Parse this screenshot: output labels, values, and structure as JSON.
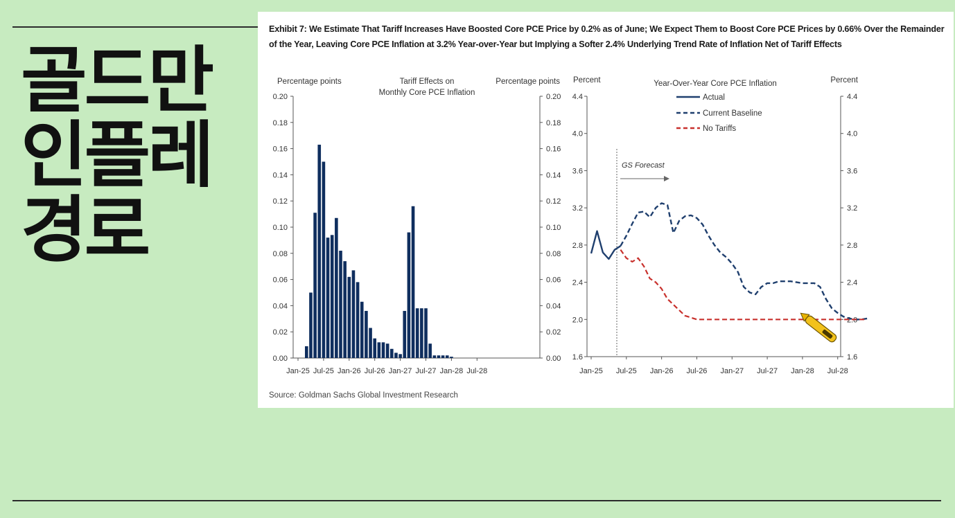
{
  "headline": [
    "골드만",
    "인플레",
    "경로"
  ],
  "exhibit": {
    "title": "Exhibit 7: We Estimate That Tariff Increases Have Boosted Core PCE Price by 0.2% as of June; We Expect Them to Boost Core PCE Prices by 0.66% Over the Remainder of the Year, Leaving Core PCE Inflation at 3.2% Year-over-Year but Implying a Softer 2.4% Underlying Trend Rate of Inflation Net of Tariff Effects",
    "source": "Source: Goldman Sachs Global Investment Research"
  },
  "colors": {
    "background": "#c7ebc0",
    "bars": "#0f2e5e",
    "actual": "#1f3f6e",
    "baseline": "#1f3f6e",
    "no_tariffs": "#c8312d",
    "pen": "#f2c21b"
  },
  "chart_data": [
    {
      "type": "bar",
      "title": "Tariff Effects on Monthly Core PCE Inflation",
      "ylabel_left": "Percentage points",
      "ylabel_right": "Percentage points",
      "ylim": [
        0,
        0.2
      ],
      "yticks": [
        "0.00",
        "0.02",
        "0.04",
        "0.06",
        "0.08",
        "0.10",
        "0.12",
        "0.14",
        "0.16",
        "0.18",
        "0.20"
      ],
      "xticks": [
        "Jan-25",
        "Jul-25",
        "Jan-26",
        "Jul-26",
        "Jan-27",
        "Jul-27",
        "Jan-28",
        "Jul-28"
      ],
      "grid": false,
      "categories": [
        "Mar-25",
        "Apr-25",
        "May-25",
        "Jun-25",
        "Jul-25",
        "Aug-25",
        "Sep-25",
        "Oct-25",
        "Nov-25",
        "Dec-25",
        "Jan-26",
        "Feb-26",
        "Mar-26",
        "Apr-26",
        "May-26",
        "Jun-26",
        "Jul-26",
        "Aug-26",
        "Sep-26",
        "Oct-26",
        "Nov-26",
        "Dec-26",
        "Jan-27",
        "Feb-27",
        "Mar-27",
        "Apr-27",
        "May-27",
        "Jun-27",
        "Jul-27",
        "Aug-27",
        "Sep-27",
        "Oct-27",
        "Nov-27",
        "Dec-27",
        "Jan-28"
      ],
      "values": [
        0.009,
        0.05,
        0.111,
        0.163,
        0.15,
        0.092,
        0.094,
        0.107,
        0.082,
        0.074,
        0.062,
        0.067,
        0.058,
        0.043,
        0.036,
        0.023,
        0.015,
        0.012,
        0.012,
        0.011,
        0.007,
        0.004,
        0.003,
        0.036,
        0.096,
        0.116,
        0.038,
        0.038,
        0.038,
        0.011,
        0.002,
        0.002,
        0.002,
        0.002,
        0.001
      ]
    },
    {
      "type": "line",
      "title": "Year-Over-Year  Core PCE Inflation",
      "ylabel_left": "Percent",
      "ylabel_right": "Percent",
      "ylim": [
        1.6,
        4.4
      ],
      "yticks": [
        "1.6",
        "2.0",
        "2.4",
        "2.8",
        "3.2",
        "3.6",
        "4.0",
        "4.4"
      ],
      "xticks": [
        "Jan-25",
        "Jul-25",
        "Jan-26",
        "Jul-26",
        "Jan-27",
        "Jul-27",
        "Jan-28",
        "Jul-28"
      ],
      "legend_position": "top",
      "annotation": "GS Forecast",
      "series": [
        {
          "name": "Actual",
          "style": "solid",
          "x": [
            "Jan-25",
            "Feb-25",
            "Mar-25",
            "Apr-25",
            "May-25",
            "Jun-25"
          ],
          "y": [
            2.71,
            2.95,
            2.72,
            2.65,
            2.75,
            2.79
          ]
        },
        {
          "name": "Current Baseline",
          "style": "dashed",
          "x": [
            "Jun-25",
            "Jul-25",
            "Aug-25",
            "Sep-25",
            "Oct-25",
            "Nov-25",
            "Dec-25",
            "Jan-26",
            "Feb-26",
            "Mar-26",
            "Apr-26",
            "May-26",
            "Jun-26",
            "Jul-26",
            "Aug-26",
            "Sep-26",
            "Oct-26",
            "Nov-26",
            "Dec-26",
            "Jan-27",
            "Feb-27",
            "Mar-27",
            "Apr-27",
            "May-27",
            "Jun-27",
            "Jul-27",
            "Aug-27",
            "Sep-27",
            "Oct-27",
            "Nov-27",
            "Dec-27",
            "Jan-28",
            "Feb-28",
            "Mar-28",
            "Apr-28",
            "May-28",
            "Jun-28",
            "Jul-28",
            "Aug-28",
            "Sep-28",
            "Oct-28",
            "Nov-28",
            "Dec-28"
          ],
          "y": [
            2.79,
            2.9,
            3.03,
            3.15,
            3.16,
            3.1,
            3.2,
            3.25,
            3.23,
            2.93,
            3.06,
            3.11,
            3.12,
            3.09,
            3.02,
            2.9,
            2.8,
            2.72,
            2.67,
            2.6,
            2.51,
            2.35,
            2.29,
            2.27,
            2.35,
            2.39,
            2.39,
            2.41,
            2.41,
            2.41,
            2.4,
            2.39,
            2.39,
            2.39,
            2.35,
            2.22,
            2.12,
            2.07,
            2.03,
            2.01,
            2.0,
            2.0,
            2.01
          ]
        },
        {
          "name": "No Tariffs",
          "style": "dashed",
          "x": [
            "Jun-25",
            "Jul-25",
            "Aug-25",
            "Sep-25",
            "Oct-25",
            "Nov-25",
            "Dec-25",
            "Jan-26",
            "Feb-26",
            "Mar-26",
            "Apr-26",
            "May-26",
            "Jun-26",
            "Jul-26",
            "Aug-26",
            "Sep-26",
            "Oct-26",
            "Nov-26",
            "Dec-26",
            "Jan-27",
            "Jul-27",
            "Jan-28",
            "Jul-28",
            "Dec-28"
          ],
          "y": [
            2.75,
            2.66,
            2.62,
            2.66,
            2.57,
            2.44,
            2.4,
            2.33,
            2.22,
            2.16,
            2.1,
            2.04,
            2.02,
            2.0,
            2.0,
            2.0,
            2.0,
            2.0,
            2.0,
            2.0,
            2.0,
            2.0,
            2.0,
            2.0
          ]
        }
      ]
    }
  ]
}
